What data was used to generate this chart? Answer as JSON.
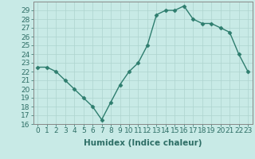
{
  "x": [
    0,
    1,
    2,
    3,
    4,
    5,
    6,
    7,
    8,
    9,
    10,
    11,
    12,
    13,
    14,
    15,
    16,
    17,
    18,
    19,
    20,
    21,
    22,
    23
  ],
  "y": [
    22.5,
    22.5,
    22,
    21,
    20,
    19,
    18,
    16.5,
    18.5,
    20.5,
    22,
    23,
    25,
    28.5,
    29,
    29,
    29.5,
    28,
    27.5,
    27.5,
    27,
    26.5,
    24,
    22
  ],
  "line_color": "#2e7d6e",
  "marker": "D",
  "marker_size": 2.5,
  "bg_color": "#c8eae6",
  "grid_color": "#aed4cf",
  "xlabel": "Humidex (Indice chaleur)",
  "xlim": [
    -0.5,
    23.5
  ],
  "ylim": [
    16,
    30
  ],
  "yticks": [
    16,
    17,
    18,
    19,
    20,
    21,
    22,
    23,
    24,
    25,
    26,
    27,
    28,
    29
  ],
  "xticks": [
    0,
    1,
    2,
    3,
    4,
    5,
    6,
    7,
    8,
    9,
    10,
    11,
    12,
    13,
    14,
    15,
    16,
    17,
    18,
    19,
    20,
    21,
    22,
    23
  ],
  "xtick_labels": [
    "0",
    "1",
    "2",
    "3",
    "4",
    "5",
    "6",
    "7",
    "8",
    "9",
    "10",
    "11",
    "12",
    "13",
    "14",
    "15",
    "16",
    "17",
    "18",
    "19",
    "20",
    "21",
    "22",
    "23"
  ],
  "tick_color": "#2e6e66",
  "axis_color": "#888888",
  "xlabel_fontsize": 7.5,
  "tick_fontsize": 6.5,
  "line_width": 1.0
}
